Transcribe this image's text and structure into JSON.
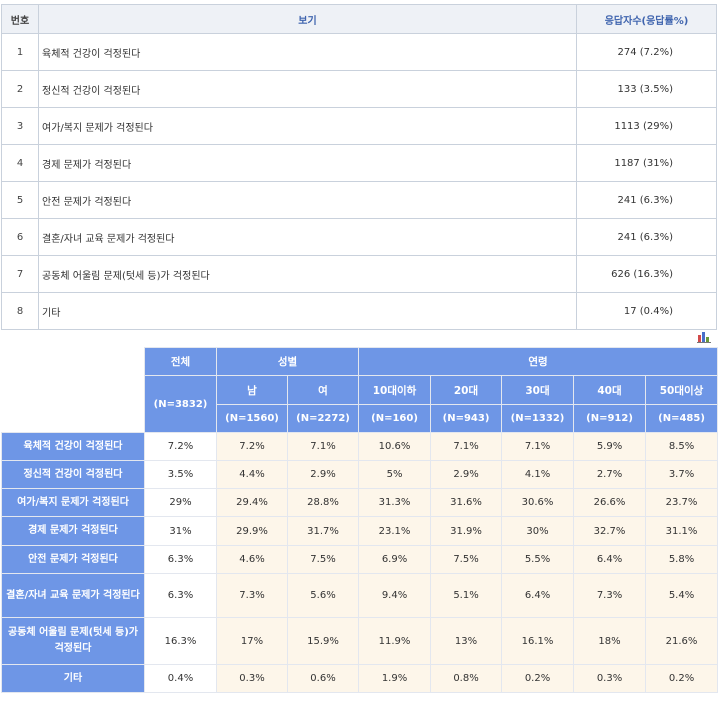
{
  "table": {
    "headers": {
      "no": "번호",
      "option": "보기",
      "count": "응답자수(응답률%)"
    },
    "rows": [
      {
        "no": "1",
        "option": "육체적 건강이 걱정된다",
        "count": "274 (7.2%)"
      },
      {
        "no": "2",
        "option": "정신적 건강이 걱정된다",
        "count": "133 (3.5%)"
      },
      {
        "no": "3",
        "option": "여가/복지 문제가 걱정된다",
        "count": "1113 (29%)"
      },
      {
        "no": "4",
        "option": "경제 문제가 걱정된다",
        "count": "1187 (31%)"
      },
      {
        "no": "5",
        "option": "안전 문제가 걱정된다",
        "count": "241 (6.3%)"
      },
      {
        "no": "6",
        "option": "결혼/자녀 교육 문제가 걱정된다",
        "count": "241 (6.3%)"
      },
      {
        "no": "7",
        "option": "공동체 어울림 문제(텃세 등)가 걱정된다",
        "count": "626 (16.3%)"
      },
      {
        "no": "8",
        "option": "기타",
        "count": "17 (0.4%)"
      }
    ]
  },
  "chart_icon": {
    "name": "bar-chart-icon",
    "colors": [
      "#d24a4a",
      "#4a6fc8",
      "#6a9a3a"
    ]
  },
  "cross": {
    "groups": {
      "total": "전체",
      "gender": "성별",
      "age": "연령"
    },
    "total_n": "(N=3832)",
    "columns": [
      {
        "label": "남",
        "n": "(N=1560)"
      },
      {
        "label": "여",
        "n": "(N=2272)"
      },
      {
        "label": "10대이하",
        "n": "(N=160)"
      },
      {
        "label": "20대",
        "n": "(N=943)"
      },
      {
        "label": "30대",
        "n": "(N=1332)"
      },
      {
        "label": "40대",
        "n": "(N=912)"
      },
      {
        "label": "50대이상",
        "n": "(N=485)"
      }
    ],
    "rows": [
      {
        "label": "육체적 건강이 걱정된다",
        "total": "7.2%",
        "values": [
          "7.2%",
          "7.1%",
          "10.6%",
          "7.1%",
          "7.1%",
          "5.9%",
          "8.5%"
        ]
      },
      {
        "label": "정신적 건강이 걱정된다",
        "total": "3.5%",
        "values": [
          "4.4%",
          "2.9%",
          "5%",
          "2.9%",
          "4.1%",
          "2.7%",
          "3.7%"
        ]
      },
      {
        "label": "여가/복지 문제가 걱정된다",
        "total": "29%",
        "values": [
          "29.4%",
          "28.8%",
          "31.3%",
          "31.6%",
          "30.6%",
          "26.6%",
          "23.7%"
        ]
      },
      {
        "label": "경제 문제가 걱정된다",
        "total": "31%",
        "values": [
          "29.9%",
          "31.7%",
          "23.1%",
          "31.9%",
          "30%",
          "32.7%",
          "31.1%"
        ]
      },
      {
        "label": "안전 문제가 걱정된다",
        "total": "6.3%",
        "values": [
          "4.6%",
          "7.5%",
          "6.9%",
          "7.5%",
          "5.5%",
          "6.4%",
          "5.8%"
        ]
      },
      {
        "label": "결혼/자녀 교육 문제가 걱정된다",
        "total": "6.3%",
        "values": [
          "7.3%",
          "5.6%",
          "9.4%",
          "5.1%",
          "6.4%",
          "7.3%",
          "5.4%"
        ]
      },
      {
        "label": "공동체 어울림 문제(텃세 등)가 걱정된다",
        "total": "16.3%",
        "values": [
          "17%",
          "15.9%",
          "11.9%",
          "13%",
          "16.1%",
          "18%",
          "21.6%"
        ]
      },
      {
        "label": "기타",
        "total": "0.4%",
        "values": [
          "0.3%",
          "0.6%",
          "1.9%",
          "0.8%",
          "0.2%",
          "0.3%",
          "0.2%"
        ]
      }
    ]
  }
}
